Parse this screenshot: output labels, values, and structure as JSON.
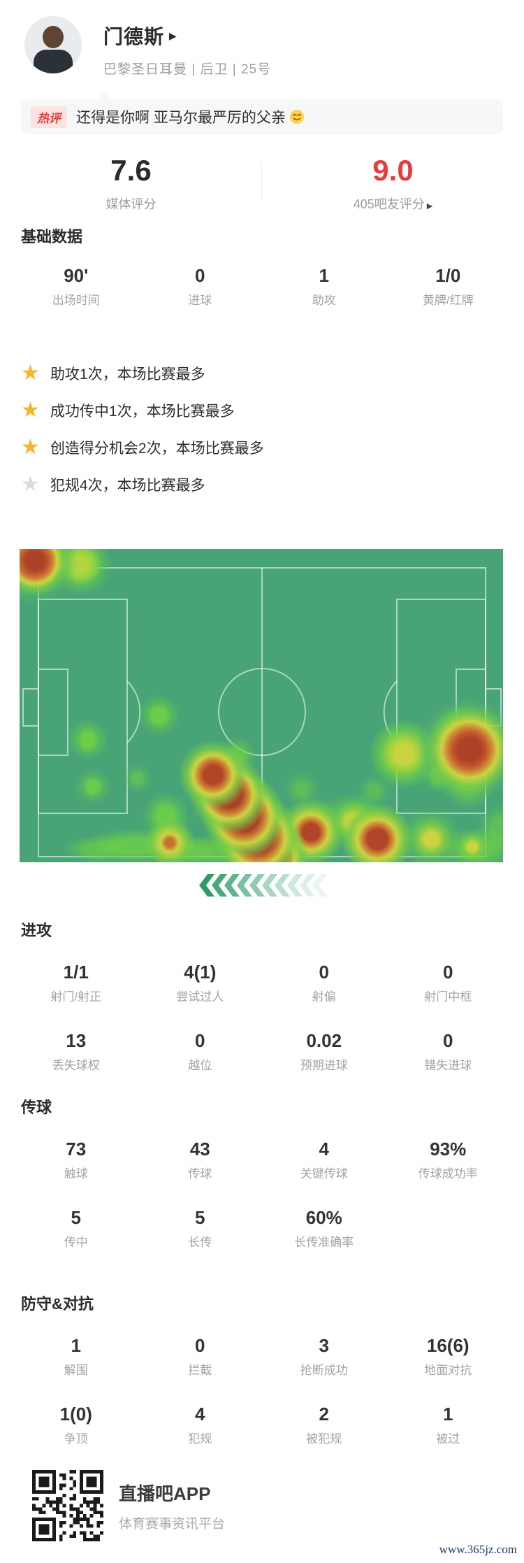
{
  "player": {
    "name": "门德斯",
    "expand_arrow": "▶",
    "team_meta": "巴黎圣日耳曼 | 后卫 | 25号"
  },
  "hot_comment": {
    "badge": "热评",
    "text": "还得是你啊 亚马尔最严厉的父亲",
    "emoji": "smiling-face"
  },
  "ratings": {
    "media": {
      "value": "7.6",
      "label": "媒体评分"
    },
    "fans": {
      "value": "9.0",
      "label": "405吧友评分",
      "arrow": "▶"
    }
  },
  "sections": {
    "basic": {
      "title": "基础数据",
      "stats": [
        {
          "value": "90'",
          "label": "出场时间"
        },
        {
          "value": "0",
          "label": "进球"
        },
        {
          "value": "1",
          "label": "助攻"
        },
        {
          "value": "1/0",
          "label": "黄牌/红牌"
        }
      ]
    },
    "attack": {
      "title": "进攻",
      "stats": [
        {
          "value": "1/1",
          "label": "射门/射正"
        },
        {
          "value": "4(1)",
          "label": "尝试过人"
        },
        {
          "value": "0",
          "label": "射偏"
        },
        {
          "value": "0",
          "label": "射门中框"
        },
        {
          "value": "13",
          "label": "丢失球权"
        },
        {
          "value": "0",
          "label": "越位"
        },
        {
          "value": "0.02",
          "label": "预期进球"
        },
        {
          "value": "0",
          "label": "错失进球"
        }
      ]
    },
    "passing": {
      "title": "传球",
      "stats": [
        {
          "value": "73",
          "label": "触球"
        },
        {
          "value": "43",
          "label": "传球"
        },
        {
          "value": "4",
          "label": "关键传球"
        },
        {
          "value": "93%",
          "label": "传球成功率"
        },
        {
          "value": "5",
          "label": "传中"
        },
        {
          "value": "5",
          "label": "长传"
        },
        {
          "value": "60%",
          "label": "长传准确率"
        }
      ]
    },
    "defense": {
      "title": "防守&对抗",
      "stats": [
        {
          "value": "1",
          "label": "解围"
        },
        {
          "value": "0",
          "label": "拦截"
        },
        {
          "value": "3",
          "label": "抢断成功"
        },
        {
          "value": "16(6)",
          "label": "地面对抗"
        },
        {
          "value": "1(0)",
          "label": "争顶"
        },
        {
          "value": "4",
          "label": "犯规"
        },
        {
          "value": "2",
          "label": "被犯规"
        },
        {
          "value": "1",
          "label": "被过"
        }
      ]
    }
  },
  "highlights": [
    {
      "icon": "star",
      "style": "gold",
      "text": "助攻1次，本场比赛最多"
    },
    {
      "icon": "star",
      "style": "gold",
      "text": "成功传中1次，本场比赛最多"
    },
    {
      "icon": "star",
      "style": "gold",
      "text": "创造得分机会2次，本场比赛最多"
    },
    {
      "icon": "star",
      "style": "gray",
      "text": "犯规4次，本场比赛最多"
    }
  ],
  "heatmap": {
    "attack_direction": "left",
    "chevron_count": 10,
    "pitch_color": "#48a476"
  },
  "colors": {
    "accent_red": "#e83c3c",
    "star_gold": "#f6b42c",
    "star_gray": "#d9dce2"
  },
  "footer": {
    "app_name": "直播吧APP",
    "app_desc": "体育赛事资讯平台",
    "watermark": "www.365jz.com"
  }
}
